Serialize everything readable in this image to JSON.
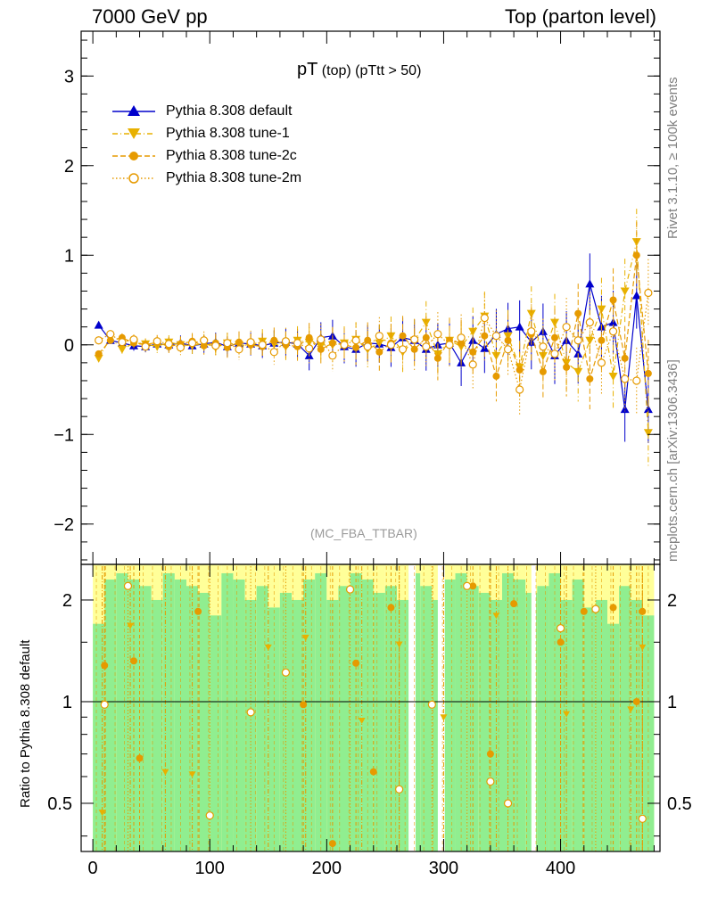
{
  "header": {
    "left": "7000 GeV pp",
    "right": "Top (parton level)"
  },
  "side_labels": {
    "top": "Rivet 3.1.10, ≥ 100k events",
    "bottom": "mcplots.cern.ch [arXiv:1306.3436]"
  },
  "chart_data": [
    {
      "type": "line",
      "title_main": "pT",
      "title_sub": "(top) (pTtt > 50)",
      "subtitle": "(MC_FBA_TTBAR)",
      "xlim": [
        -10,
        485
      ],
      "ylim": [
        -2.45,
        3.5
      ],
      "yticks": [
        -2,
        -1,
        0,
        1,
        2,
        3
      ],
      "ytick_labels": [
        "−2",
        "−1",
        "0",
        "1",
        "2",
        "3"
      ],
      "xticks": [
        0,
        100,
        200,
        300,
        400
      ],
      "legend_position": "top-left",
      "series": [
        {
          "name": "Pythia 8.308 default",
          "color": "#0000cc",
          "marker": "triangle-up",
          "line": "solid",
          "x": [
            5,
            15,
            25,
            35,
            45,
            55,
            65,
            75,
            85,
            95,
            105,
            115,
            125,
            135,
            145,
            155,
            165,
            175,
            185,
            195,
            205,
            215,
            225,
            235,
            245,
            255,
            265,
            275,
            285,
            295,
            305,
            315,
            325,
            335,
            345,
            355,
            365,
            375,
            385,
            395,
            405,
            415,
            425,
            435,
            445,
            455,
            465,
            475
          ],
          "y": [
            0.22,
            0.05,
            0.02,
            -0.01,
            -0.02,
            0.01,
            0.0,
            0.02,
            -0.01,
            0.01,
            0.03,
            -0.02,
            0.02,
            0.01,
            -0.01,
            0.02,
            0.03,
            0.01,
            -0.12,
            0.08,
            0.1,
            -0.02,
            -0.05,
            0.02,
            0.01,
            -0.03,
            0.08,
            0.05,
            -0.05,
            0.0,
            0.02,
            -0.2,
            0.05,
            -0.04,
            0.12,
            0.18,
            0.2,
            0.03,
            0.15,
            -0.12,
            0.05,
            -0.1,
            0.68,
            0.2,
            0.25,
            -0.72,
            0.55,
            -0.72
          ]
        },
        {
          "name": "Pythia 8.308 tune-1",
          "color": "#e8b100",
          "marker": "triangle-down",
          "line": "dashdot",
          "x": [
            5,
            15,
            25,
            35,
            45,
            55,
            65,
            75,
            85,
            95,
            105,
            115,
            125,
            135,
            145,
            155,
            165,
            175,
            185,
            195,
            205,
            215,
            225,
            235,
            245,
            255,
            265,
            275,
            285,
            295,
            305,
            315,
            325,
            335,
            345,
            355,
            365,
            375,
            385,
            395,
            405,
            415,
            425,
            435,
            445,
            455,
            465,
            475
          ],
          "y": [
            -0.15,
            0.08,
            -0.05,
            0.02,
            0.01,
            -0.02,
            0.03,
            0.0,
            -0.01,
            0.02,
            -0.03,
            0.02,
            0.0,
            -0.01,
            0.04,
            0.01,
            -0.02,
            0.05,
            0.03,
            -0.01,
            0.0,
            0.02,
            0.06,
            -0.05,
            0.02,
            0.1,
            -0.08,
            0.05,
            0.25,
            -0.1,
            0.05,
            -0.02,
            0.15,
            0.32,
            -0.12,
            0.1,
            -0.25,
            0.35,
            -0.12,
            0.25,
            -0.2,
            -0.3,
            0.05,
            0.4,
            -0.35,
            0.6,
            1.15,
            -0.98
          ]
        },
        {
          "name": "Pythia 8.308 tune-2c",
          "color": "#e69a00",
          "marker": "circle",
          "line": "dashed",
          "x": [
            5,
            15,
            25,
            35,
            45,
            55,
            65,
            75,
            85,
            95,
            105,
            115,
            125,
            135,
            145,
            155,
            165,
            175,
            185,
            195,
            205,
            215,
            225,
            235,
            245,
            255,
            265,
            275,
            285,
            295,
            305,
            315,
            325,
            335,
            345,
            355,
            365,
            375,
            385,
            395,
            405,
            415,
            425,
            435,
            445,
            455,
            465,
            475
          ],
          "y": [
            -0.1,
            0.05,
            0.08,
            0.02,
            0.0,
            0.03,
            -0.02,
            0.01,
            0.04,
            -0.01,
            0.02,
            -0.03,
            0.03,
            0.0,
            -0.02,
            0.05,
            0.0,
            -0.02,
            0.08,
            -0.05,
            0.02,
            0.0,
            -0.03,
            0.05,
            -0.08,
            0.02,
            0.1,
            -0.05,
            0.08,
            -0.15,
            0.05,
            0.02,
            -0.08,
            0.1,
            -0.35,
            0.05,
            -0.28,
            0.12,
            -0.3,
            0.08,
            -0.25,
            0.35,
            -0.38,
            0.05,
            0.5,
            -0.15,
            1.0,
            -0.32
          ]
        },
        {
          "name": "Pythia 8.308 tune-2m",
          "color": "#e69a00",
          "marker": "circle-open",
          "line": "dotted",
          "x": [
            5,
            15,
            25,
            35,
            45,
            55,
            65,
            75,
            85,
            95,
            105,
            115,
            125,
            135,
            145,
            155,
            165,
            175,
            185,
            195,
            205,
            215,
            225,
            235,
            245,
            255,
            265,
            275,
            285,
            295,
            305,
            315,
            325,
            335,
            345,
            355,
            365,
            375,
            385,
            395,
            405,
            415,
            425,
            435,
            445,
            455,
            465,
            475
          ],
          "y": [
            0.05,
            0.12,
            0.03,
            0.06,
            -0.02,
            0.04,
            0.01,
            -0.03,
            0.02,
            0.05,
            -0.01,
            0.02,
            -0.05,
            0.03,
            0.0,
            -0.08,
            0.04,
            0.02,
            -0.04,
            0.06,
            -0.12,
            0.0,
            0.05,
            -0.02,
            0.1,
            0.0,
            -0.05,
            0.06,
            -0.02,
            0.12,
            0.0,
            0.08,
            -0.22,
            0.3,
            0.1,
            -0.05,
            -0.5,
            0.15,
            -0.02,
            -0.1,
            0.2,
            0.05,
            0.25,
            -0.2,
            0.15,
            -0.38,
            -0.4,
            0.58
          ]
        }
      ]
    },
    {
      "type": "line",
      "ylabel": "Ratio to Pythia 8.308 default",
      "scale": "log",
      "ylim": [
        0.36,
        2.55
      ],
      "yticks": [
        0.5,
        1,
        2
      ],
      "ytick_labels": [
        "0.5",
        "1",
        "2"
      ],
      "xlim": [
        -10,
        485
      ],
      "xticks": [
        0,
        100,
        200,
        300,
        400
      ],
      "xtick_labels": [
        "0",
        "100",
        "200",
        "300",
        "400"
      ],
      "band_outer_color": "#ffff99",
      "band_inner_color": "#90ee90",
      "band": {
        "x": [
          0,
          10,
          20,
          30,
          40,
          50,
          60,
          70,
          80,
          90,
          100,
          110,
          120,
          130,
          140,
          150,
          160,
          170,
          180,
          190,
          200,
          210,
          220,
          230,
          240,
          250,
          260,
          270,
          280,
          290,
          300,
          310,
          320,
          330,
          340,
          350,
          360,
          370,
          380,
          390,
          400,
          410,
          420,
          430,
          440,
          450,
          460,
          470,
          480
        ],
        "inner_hi": [
          1.7,
          2.3,
          2.4,
          2.3,
          2.2,
          2.0,
          2.4,
          2.3,
          2.2,
          2.1,
          1.8,
          2.4,
          2.3,
          2.0,
          2.2,
          1.9,
          2.1,
          2.0,
          2.3,
          2.4,
          2.0,
          2.2,
          2.4,
          2.3,
          2.1,
          2.2,
          2.0,
          2.4,
          2.2,
          2.0,
          2.3,
          2.4,
          2.2,
          2.1,
          2.0,
          2.4,
          2.3,
          2.1,
          2.2,
          2.4,
          2.0,
          2.3,
          1.9,
          2.0,
          1.7,
          2.2,
          2.0,
          1.8,
          1.9
        ],
        "inner_lo": [
          0.36,
          0.36,
          0.36,
          0.36,
          0.36,
          0.36,
          0.36,
          0.36,
          0.36,
          0.36,
          0.36,
          0.36,
          0.36,
          0.36,
          0.36,
          0.36,
          0.36,
          0.36,
          0.36,
          0.36,
          0.36,
          0.36,
          0.36,
          0.36,
          0.36,
          0.36,
          0.36,
          0.36,
          0.36,
          0.36,
          0.36,
          0.36,
          0.36,
          0.36,
          0.36,
          0.36,
          0.36,
          0.36,
          0.36,
          0.36,
          0.36,
          0.36,
          0.36,
          0.36,
          0.36,
          0.36,
          0.36,
          0.36,
          0.36
        ],
        "outer_hi": [
          2.55,
          2.55,
          2.55,
          2.55,
          2.55,
          2.55,
          2.55,
          2.55,
          2.55,
          2.55,
          2.55,
          2.55,
          2.55,
          2.55,
          2.55,
          2.55,
          2.55,
          2.55,
          2.55,
          2.55,
          2.55,
          2.55,
          2.55,
          2.55,
          2.55,
          2.55,
          2.55,
          2.55,
          2.55,
          2.55,
          2.55,
          2.55,
          2.55,
          2.55,
          2.55,
          2.55,
          2.55,
          2.55,
          2.55,
          2.55,
          2.55,
          2.55,
          2.55,
          2.55,
          2.55,
          2.55,
          2.55,
          2.55,
          2.55
        ]
      },
      "gaps": [
        [
          270,
          276
        ],
        [
          295,
          301
        ],
        [
          375,
          379
        ]
      ],
      "ratio_points": {
        "tune-1": [
          [
            8,
            0.47
          ],
          [
            32,
            1.68
          ],
          [
            62,
            0.62
          ],
          [
            85,
            0.61
          ],
          [
            150,
            1.45
          ],
          [
            182,
            1.55
          ],
          [
            230,
            0.88
          ],
          [
            262,
            1.48
          ],
          [
            300,
            0.9
          ],
          [
            345,
            1.8
          ],
          [
            405,
            0.92
          ],
          [
            460,
            0.95
          ],
          [
            470,
            1.45
          ]
        ],
        "tune-2c": [
          [
            10,
            1.28
          ],
          [
            35,
            1.32
          ],
          [
            40,
            0.68
          ],
          [
            90,
            1.85
          ],
          [
            180,
            0.98
          ],
          [
            205,
            0.38
          ],
          [
            225,
            1.3
          ],
          [
            240,
            0.62
          ],
          [
            255,
            1.9
          ],
          [
            325,
            2.2
          ],
          [
            340,
            0.7
          ],
          [
            360,
            1.95
          ],
          [
            400,
            1.5
          ],
          [
            420,
            1.85
          ],
          [
            445,
            1.9
          ],
          [
            465,
            1.0
          ],
          [
            470,
            1.85
          ]
        ],
        "tune-2m": [
          [
            10,
            0.98
          ],
          [
            30,
            2.2
          ],
          [
            100,
            0.46
          ],
          [
            135,
            0.93
          ],
          [
            165,
            1.22
          ],
          [
            220,
            2.15
          ],
          [
            262,
            0.55
          ],
          [
            290,
            0.98
          ],
          [
            320,
            2.2
          ],
          [
            340,
            0.58
          ],
          [
            355,
            0.5
          ],
          [
            400,
            1.65
          ],
          [
            430,
            1.88
          ],
          [
            470,
            0.45
          ]
        ]
      }
    }
  ]
}
